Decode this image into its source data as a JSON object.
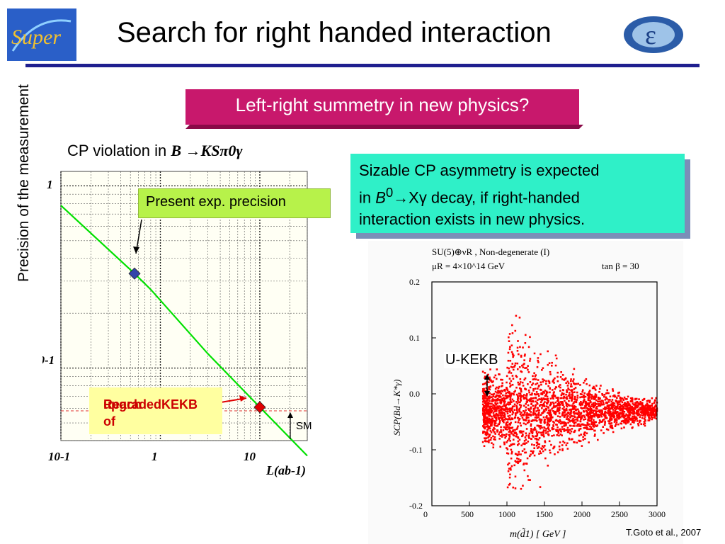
{
  "slide": {
    "title": "Search for right handed interaction",
    "banner": "Left-right summetry in new physics?",
    "credit": "T.Goto et al., 2007",
    "colors": {
      "title_rule": "#1f1f8f",
      "banner": "#c8186c",
      "info_box": "#2ff0c8",
      "present_box": "#b7f24a",
      "reach_box": "#ffffa0",
      "reach_text": "#cc0000",
      "curve": "#00e000",
      "scatter": "#ff0000"
    }
  },
  "logos": {
    "left_text": "Super",
    "right_text": "ε"
  },
  "left_chart": {
    "title_prefix": "CP violation in ",
    "title_formula": "B →KSπ0γ",
    "ylabel": "Precision of the measurement",
    "xlabel": "L(ab-1)",
    "x_ticks": [
      "10-1",
      "1",
      "10"
    ],
    "y_ticks": [
      "1",
      "10-1"
    ],
    "present_label": "Present exp. precision",
    "reach_label_line1": "Reach of",
    "reach_label_line2": "upgradedKEKB",
    "sm_label": "SM"
  },
  "chart_data": [
    {
      "type": "line",
      "x_scale": "log",
      "y_scale": "log",
      "xlabel": "L(ab-1)",
      "ylabel": "Precision of the measurement",
      "xlim": [
        0.1,
        30
      ],
      "ylim": [
        0.04,
        1.2
      ],
      "series": [
        {
          "x": [
            0.1,
            0.55,
            0.8,
            3.0,
            10.0,
            30.0
          ],
          "y": [
            0.78,
            0.33,
            0.27,
            0.12,
            0.061,
            0.033
          ]
        }
      ],
      "markers": [
        {
          "label": "Present exp. precision",
          "x": 0.55,
          "y": 0.33,
          "color": "#3344aa"
        },
        {
          "label": "Reach of upgradedKEKB",
          "x": 10.0,
          "y": 0.061,
          "color": "#e00000"
        }
      ]
    },
    {
      "type": "scatter",
      "header_line1": "SU(5)⊕νR , Non-degenerate (I)",
      "header_line2": "μR = 4×10^14 GeV",
      "header_right": "tan β = 30",
      "xlabel": "m(d̃1) [ GeV ]",
      "ylabel": "SCP(Bd→K*γ)",
      "xlim": [
        0,
        3000
      ],
      "ylim": [
        -0.2,
        0.2
      ],
      "x_ticks": [
        "0",
        "500",
        "1000",
        "1500",
        "2000",
        "2500",
        "3000"
      ],
      "y_ticks": [
        "0.2",
        "0.1",
        "0.0",
        "-0.1",
        "-0.2"
      ],
      "annotation": "U-KEKB",
      "distribution": {
        "x_min": 680,
        "x_max": 3000,
        "center": -0.03,
        "spread_at_1000": 0.15,
        "spread_at_3000": 0.02
      }
    }
  ],
  "info_box": {
    "line1": "Sizable CP asymmetry is expected",
    "line2_a": "in ",
    "line2_B": "B",
    "line2_sup": "0",
    "line2_rest": "→Xγ decay, if right-handed",
    "line3": "interaction exists in new physics."
  }
}
